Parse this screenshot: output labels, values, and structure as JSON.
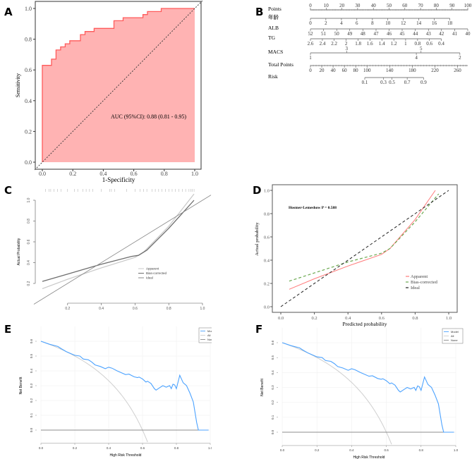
{
  "panel_labels": {
    "a": "A",
    "b": "B",
    "c": "C",
    "d": "D",
    "e": "E",
    "f": "F"
  },
  "chart_data": [
    {
      "id": "A",
      "type": "line",
      "subtype": "roc",
      "xlabel": "1-Specificity",
      "ylabel": "Sensitivity",
      "xlim": [
        0,
        1
      ],
      "ylim": [
        0,
        1
      ],
      "xticks": [
        "0.0",
        "0.2",
        "0.4",
        "0.6",
        "0.8",
        "1.0"
      ],
      "yticks": [
        "0.0",
        "0.2",
        "0.4",
        "0.6",
        "0.8",
        "1.0"
      ],
      "annotation": "AUC (95%CI): 0.88 (0.81 - 0.95)",
      "fill_color": "#ffb3b3",
      "line_color": "#ff5a5a",
      "points": [
        [
          0,
          0
        ],
        [
          0,
          0.63
        ],
        [
          0.06,
          0.63
        ],
        [
          0.06,
          0.67
        ],
        [
          0.09,
          0.67
        ],
        [
          0.09,
          0.73
        ],
        [
          0.12,
          0.73
        ],
        [
          0.12,
          0.75
        ],
        [
          0.15,
          0.75
        ],
        [
          0.15,
          0.77
        ],
        [
          0.18,
          0.77
        ],
        [
          0.18,
          0.79
        ],
        [
          0.25,
          0.79
        ],
        [
          0.25,
          0.83
        ],
        [
          0.28,
          0.83
        ],
        [
          0.28,
          0.85
        ],
        [
          0.34,
          0.85
        ],
        [
          0.34,
          0.87
        ],
        [
          0.47,
          0.87
        ],
        [
          0.47,
          0.92
        ],
        [
          0.53,
          0.92
        ],
        [
          0.53,
          0.94
        ],
        [
          0.66,
          0.94
        ],
        [
          0.66,
          0.96
        ],
        [
          0.69,
          0.96
        ],
        [
          0.69,
          0.98
        ],
        [
          0.78,
          0.98
        ],
        [
          0.78,
          1
        ],
        [
          1,
          1
        ]
      ]
    },
    {
      "id": "B",
      "type": "table",
      "subtype": "nomogram",
      "rows": [
        {
          "label": "Points",
          "scale": "points",
          "ticks": [
            [
              "0",
              0,
              "u"
            ],
            [
              "10",
              10,
              "u"
            ],
            [
              "20",
              20,
              "u"
            ],
            [
              "30",
              30,
              "u"
            ],
            [
              "40",
              40,
              "u"
            ],
            [
              "50",
              50,
              "u"
            ],
            [
              "60",
              60,
              "u"
            ],
            [
              "70",
              70,
              "u"
            ],
            [
              "80",
              80,
              "u"
            ],
            [
              "90",
              90,
              "u"
            ],
            [
              "100",
              100,
              "u"
            ]
          ]
        },
        {
          "label": "年龄",
          "scale": "points",
          "ticks": [
            [
              "0",
              0,
              "d"
            ],
            [
              "2",
              9.8,
              "d"
            ],
            [
              "4",
              19.7,
              "d"
            ],
            [
              "6",
              29.5,
              "d"
            ],
            [
              "8",
              39.4,
              "d"
            ],
            [
              "10",
              49.2,
              "d"
            ],
            [
              "12",
              59,
              "d"
            ],
            [
              "14",
              68.9,
              "d"
            ],
            [
              "16",
              78.7,
              "d"
            ],
            [
              "18",
              88.6,
              "d"
            ]
          ]
        },
        {
          "label": "ALB",
          "scale": "points",
          "ticks": [
            [
              "52",
              0,
              "d"
            ],
            [
              "51",
              8.3,
              "d"
            ],
            [
              "50",
              16.7,
              "d"
            ],
            [
              "49",
              25,
              "d"
            ],
            [
              "48",
              33.3,
              "d"
            ],
            [
              "47",
              41.7,
              "d"
            ],
            [
              "46",
              50,
              "d"
            ],
            [
              "45",
              58.3,
              "d"
            ],
            [
              "44",
              66.7,
              "d"
            ],
            [
              "43",
              75,
              "d"
            ],
            [
              "42",
              83.3,
              "d"
            ],
            [
              "41",
              91.7,
              "d"
            ],
            [
              "40",
              100,
              "d"
            ]
          ]
        },
        {
          "label": "TG",
          "scale": "points",
          "ticks": [
            [
              "2.6",
              0,
              "d"
            ],
            [
              "2.4",
              7.6,
              "d"
            ],
            [
              "2.2",
              15.1,
              "d"
            ],
            [
              "2",
              22.7,
              "d"
            ],
            [
              "1.8",
              30.3,
              "d"
            ],
            [
              "1.6",
              37.8,
              "d"
            ],
            [
              "1.4",
              45.4,
              "d"
            ],
            [
              "1.2",
              53,
              "d"
            ],
            [
              "1",
              60.5,
              "d"
            ],
            [
              "0.8",
              68.1,
              "d"
            ],
            [
              "0.6",
              75.6,
              "d"
            ],
            [
              "0.4",
              83.2,
              "d"
            ]
          ]
        },
        {
          "label": "MACS",
          "scale": "points",
          "ticks": [
            [
              "1",
              0,
              "d"
            ],
            [
              "3",
              23,
              "u"
            ],
            [
              "4",
              67.3,
              "d"
            ],
            [
              "5",
              70.3,
              "u"
            ],
            [
              "2",
              95,
              "d"
            ]
          ]
        },
        {
          "label": "Total Points",
          "scale": "total",
          "ticks": [
            [
              "0",
              0,
              "d"
            ],
            [
              "20",
              20,
              "d"
            ],
            [
              "40",
              40,
              "d"
            ],
            [
              "60",
              60,
              "d"
            ],
            [
              "80",
              80,
              "d"
            ],
            [
              "100",
              100,
              "d"
            ],
            [
              "140",
              140,
              "d"
            ],
            [
              "180",
              180,
              "d"
            ],
            [
              "220",
              220,
              "d"
            ],
            [
              "260",
              260,
              "d"
            ]
          ],
          "max": 278
        },
        {
          "label": "Risk",
          "scale": "total",
          "ticks": [
            [
              "0.1",
              96,
              "d"
            ],
            [
              "0.3",
              129,
              "d"
            ],
            [
              "0.5",
              144,
              "d"
            ],
            [
              "0.7",
              171,
              "d"
            ],
            [
              "0.9",
              200,
              "d"
            ]
          ]
        }
      ]
    },
    {
      "id": "C",
      "type": "line",
      "subtype": "calibration",
      "xlabel": "",
      "ylabel": "Actual Probability",
      "xticks": [
        "0.2",
        "0.4",
        "0.6",
        "0.8",
        "1.0"
      ],
      "yticks": [
        "0.2",
        "0.4",
        "0.6",
        "0.8",
        "1.0"
      ],
      "legend": [
        "Apparent",
        "Bias-corrected",
        "Ideal"
      ],
      "legend_position": "center-right",
      "series": [
        {
          "name": "Apparent",
          "color": "#c8c8c8",
          "points": [
            [
              0.05,
              0.15
            ],
            [
              0.2,
              0.24
            ],
            [
              0.4,
              0.35
            ],
            [
              0.6,
              0.45
            ],
            [
              0.65,
              0.5
            ],
            [
              0.8,
              0.75
            ],
            [
              0.95,
              1.06
            ]
          ]
        },
        {
          "name": "Bias-corrected",
          "color": "#6e6e6e",
          "points": [
            [
              0.05,
              0.22
            ],
            [
              0.2,
              0.29
            ],
            [
              0.4,
              0.385
            ],
            [
              0.58,
              0.46
            ],
            [
              0.62,
              0.47
            ],
            [
              0.67,
              0.52
            ],
            [
              0.8,
              0.73
            ],
            [
              0.95,
              1.0
            ]
          ]
        },
        {
          "name": "Ideal",
          "color": "#8a8a8a",
          "points": [
            [
              0,
              0
            ],
            [
              1.05,
              1.05
            ]
          ]
        }
      ],
      "rug": [
        0.07,
        0.09,
        0.1,
        0.12,
        0.14,
        0.16,
        0.2,
        0.24,
        0.26,
        0.29,
        0.31,
        0.33,
        0.35,
        0.4,
        0.45,
        0.46,
        0.48,
        0.55,
        0.6,
        0.63,
        0.65,
        0.67,
        0.7,
        0.72,
        0.74,
        0.76,
        0.78,
        0.8,
        0.82,
        0.84,
        0.86,
        0.88,
        0.9,
        0.92,
        0.93,
        0.94,
        0.95
      ]
    },
    {
      "id": "D",
      "type": "line",
      "subtype": "calibration",
      "xlabel": "Predicted probability",
      "ylabel": "Actual probability",
      "xticks": [
        "0.0",
        "0.2",
        "0.4",
        "0.6",
        "0.8",
        "1.0"
      ],
      "yticks": [
        "0.0",
        "0.2",
        "0.4",
        "0.6",
        "0.8",
        "1.0"
      ],
      "annotation": "Hosmer-Lemeshow  P  =  0.588",
      "legend": [
        "Apparent",
        "Bias-corrected",
        "Ideal"
      ],
      "legend_position": "bottom-right",
      "series": [
        {
          "name": "Apparent",
          "color": "#ff7b7b",
          "dash": "",
          "points": [
            [
              0.05,
              0.15
            ],
            [
              0.2,
              0.24
            ],
            [
              0.4,
              0.35
            ],
            [
              0.6,
              0.45
            ],
            [
              0.65,
              0.5
            ],
            [
              0.8,
              0.75
            ],
            [
              0.92,
              1.0
            ]
          ]
        },
        {
          "name": "Bias-corrected",
          "color": "#6aa84f",
          "dash": "4,3",
          "points": [
            [
              0.05,
              0.22
            ],
            [
              0.2,
              0.29
            ],
            [
              0.4,
              0.385
            ],
            [
              0.6,
              0.46
            ],
            [
              0.65,
              0.5
            ],
            [
              0.8,
              0.73
            ],
            [
              0.94,
              0.97
            ]
          ]
        },
        {
          "name": "Ideal",
          "color": "#222222",
          "dash": "4,3",
          "points": [
            [
              0,
              0
            ],
            [
              1,
              1
            ]
          ]
        }
      ]
    },
    {
      "id": "E",
      "type": "line",
      "subtype": "decision-curve",
      "xlabel": "High Risk Threshold",
      "ylabel": "Net Benefit",
      "xticks": [
        "0.0",
        "0.2",
        "0.4",
        "0.6",
        "0.8",
        "1.0"
      ],
      "yticks": [
        "0.0",
        "0.1",
        "0.2",
        "0.3",
        "0.4",
        "0.5",
        "0.6"
      ],
      "legend": [
        "Model",
        "All",
        "None"
      ],
      "legend_position": "top-right",
      "prevalence": 0.6,
      "colors": {
        "Model": "#4da3ff",
        "All": "#cfcfcf",
        "None": "#8c8c8c"
      }
    },
    {
      "id": "F",
      "type": "line",
      "subtype": "decision-curve",
      "xlabel": "High Risk Threshold",
      "ylabel": "Net Benefit",
      "xticks": [
        "0.0",
        "0.2",
        "0.4",
        "0.6",
        "0.8",
        "1.0"
      ],
      "yticks": [
        "0.0",
        "0.1",
        "0.2",
        "0.3",
        "0.4",
        "0.5",
        "0.6"
      ],
      "legend": [
        "Model",
        "All",
        "None"
      ],
      "legend_position": "top-right",
      "prevalence": 0.6,
      "colors": {
        "Model": "#4da3ff",
        "All": "#cfcfcf",
        "None": "#8c8c8c"
      }
    }
  ],
  "dca_model": [
    [
      0,
      0.6
    ],
    [
      0.05,
      0.58
    ],
    [
      0.1,
      0.565
    ],
    [
      0.12,
      0.55
    ],
    [
      0.15,
      0.53
    ],
    [
      0.18,
      0.515
    ],
    [
      0.2,
      0.505
    ],
    [
      0.23,
      0.5
    ],
    [
      0.25,
      0.48
    ],
    [
      0.28,
      0.475
    ],
    [
      0.3,
      0.46
    ],
    [
      0.32,
      0.44
    ],
    [
      0.35,
      0.43
    ],
    [
      0.38,
      0.415
    ],
    [
      0.4,
      0.425
    ],
    [
      0.42,
      0.418
    ],
    [
      0.45,
      0.4
    ],
    [
      0.5,
      0.375
    ],
    [
      0.52,
      0.378
    ],
    [
      0.55,
      0.36
    ],
    [
      0.57,
      0.355
    ],
    [
      0.58,
      0.358
    ],
    [
      0.6,
      0.345
    ],
    [
      0.62,
      0.325
    ],
    [
      0.63,
      0.33
    ],
    [
      0.65,
      0.315
    ],
    [
      0.67,
      0.28
    ],
    [
      0.68,
      0.27
    ],
    [
      0.7,
      0.285
    ],
    [
      0.72,
      0.3
    ],
    [
      0.74,
      0.29
    ],
    [
      0.76,
      0.3
    ],
    [
      0.77,
      0.28
    ],
    [
      0.78,
      0.31
    ],
    [
      0.79,
      0.305
    ],
    [
      0.8,
      0.28
    ],
    [
      0.82,
      0.37
    ],
    [
      0.84,
      0.32
    ],
    [
      0.86,
      0.3
    ],
    [
      0.88,
      0.25
    ],
    [
      0.9,
      0.19
    ],
    [
      0.92,
      0.05
    ],
    [
      0.93,
      0
    ],
    [
      0.99,
      0
    ]
  ]
}
